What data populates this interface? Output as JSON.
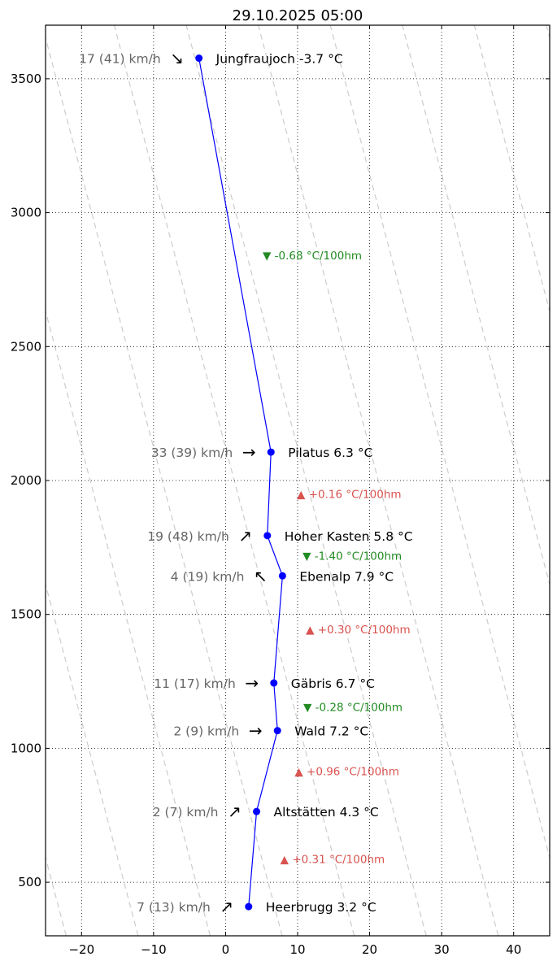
{
  "chart_data": {
    "type": "line",
    "title": "29.10.2025 05:00",
    "xlabel": "",
    "ylabel": "",
    "xlim": [
      -25,
      45
    ],
    "ylim": [
      300,
      3700
    ],
    "xticks": [
      -20,
      -10,
      0,
      10,
      20,
      30,
      40
    ],
    "yticks": [
      500,
      1000,
      1500,
      2000,
      2500,
      3000,
      3500
    ],
    "grid": true,
    "line_color": "#0000ff",
    "dry_adiabats": {
      "surface_temps": [
        -49.2,
        -39.2,
        -29.2,
        -19.2,
        -9.2,
        0.8,
        10.8,
        20.8,
        30.8,
        40.8,
        50.8,
        60.8,
        70.8,
        80.8
      ],
      "lapse_per_100m": 0.98,
      "color": "#cccccc"
    },
    "stations": [
      {
        "name": "Heerbrugg",
        "temp": 3.2,
        "alt": 409,
        "label": "Heerbrugg 3.2 °C",
        "wind": "7 (13) km/h",
        "arrow": "↗"
      },
      {
        "name": "Altstätten",
        "temp": 4.3,
        "alt": 764,
        "label": "Altstätten 4.3 °C",
        "wind": "2 (7) km/h",
        "arrow": "↗"
      },
      {
        "name": "Wald",
        "temp": 7.2,
        "alt": 1066,
        "label": "Wald 7.2 °C",
        "wind": "2 (9) km/h",
        "arrow": "→"
      },
      {
        "name": "Gäbris",
        "temp": 6.7,
        "alt": 1244,
        "label": "Gäbris 6.7 °C",
        "wind": "11 (17) km/h",
        "arrow": "→"
      },
      {
        "name": "Ebenalp",
        "temp": 7.9,
        "alt": 1644,
        "label": "Ebenalp 7.9 °C",
        "wind": "4 (19) km/h",
        "arrow": "↖"
      },
      {
        "name": "Hoher Kasten",
        "temp": 5.8,
        "alt": 1794,
        "label": "Hoher Kasten 5.8 °C",
        "wind": "19 (48) km/h",
        "arrow": "↗"
      },
      {
        "name": "Pilatus",
        "temp": 6.3,
        "alt": 2106,
        "label": "Pilatus 6.3 °C",
        "wind": "33 (39) km/h",
        "arrow": "→"
      },
      {
        "name": "Jungfraujoch",
        "temp": -3.7,
        "alt": 3577,
        "label": "Jungfraujoch -3.7 °C",
        "wind": "17 (41) km/h",
        "arrow": "↘"
      }
    ],
    "lapse_rates": [
      {
        "label": "▲ +0.31 °C/100hm",
        "value": 0.31,
        "color": "#d9534f"
      },
      {
        "label": "▲ +0.96 °C/100hm",
        "value": 0.96,
        "color": "#d9534f"
      },
      {
        "label": "▼ -0.28 °C/100hm",
        "value": -0.28,
        "color": "#228b22"
      },
      {
        "label": "▲ +0.30 °C/100hm",
        "value": 0.3,
        "color": "#d9534f"
      },
      {
        "label": "▼ -1.40 °C/100hm",
        "value": -1.4,
        "color": "#228b22"
      },
      {
        "label": "▲ +0.16 °C/100hm",
        "value": 0.16,
        "color": "#d9534f"
      },
      {
        "label": "▼ -0.68 °C/100hm",
        "value": -0.68,
        "color": "#228b22"
      }
    ]
  }
}
